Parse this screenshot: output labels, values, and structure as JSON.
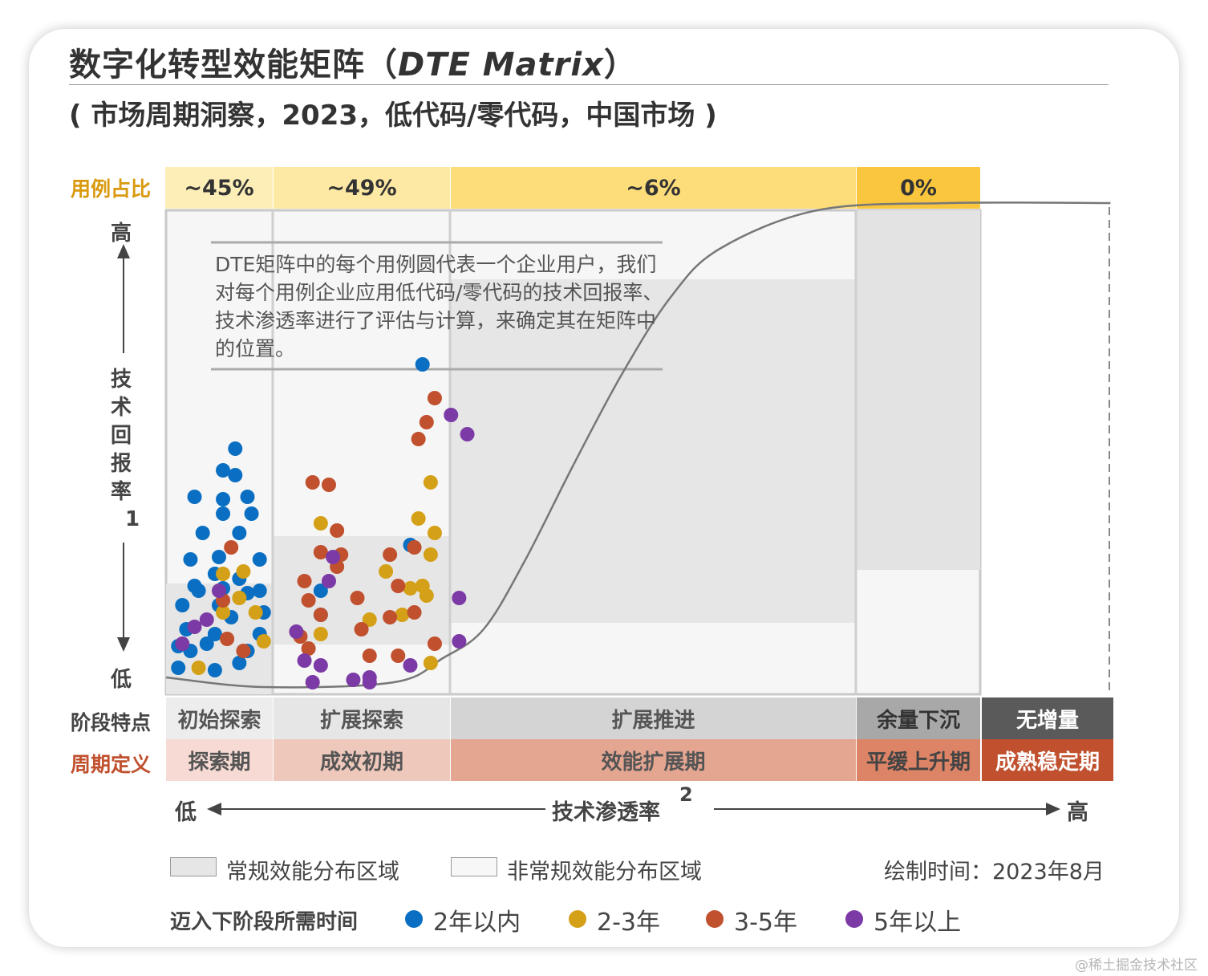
{
  "title": {
    "main": "数字化转型效能矩阵（",
    "italic": "DTE Matrix",
    "close": "）"
  },
  "subtitle": "( 市场周期洞察，2023，低代码/零代码，中国市场 )",
  "row_labels": {
    "share": "用例占比",
    "stage": "阶段特点",
    "cycle": "周期定义"
  },
  "shares": [
    "~45%",
    "~49%",
    "~6%",
    "0%"
  ],
  "stages": [
    "初始探索",
    "扩展探索",
    "扩展推进",
    "余量下沉",
    "无增量"
  ],
  "cycles": [
    "探索期",
    "成效初期",
    "效能扩展期",
    "平缓上升期",
    "成熟稳定期"
  ],
  "y_axis": {
    "high": "高",
    "low": "低",
    "label": [
      "技",
      "术",
      "回",
      "报",
      "率"
    ],
    "footnote": "1"
  },
  "x_axis": {
    "low": "低",
    "high": "高",
    "label": "技术渗透率",
    "footnote": "2"
  },
  "note": "DTE矩阵中的每个用例圆代表一个企业用户，我们对每个用例企业应用低代码/零代码的技术回报率、技术渗透率进行了评估与计算，来确定其在矩阵中的位置。",
  "legend": {
    "regular": "常规效能分布区域",
    "irregular": "非常规效能分布区域",
    "date": "绘制时间：2023年8月",
    "time_title": "迈入下阶段所需时间",
    "time_items": [
      "2年以内",
      "2-3年",
      "3-5年",
      "5年以上"
    ]
  },
  "colors": {
    "blue": "#0a6fc2",
    "gold": "#d4a017",
    "rust": "#c0502e",
    "purple": "#7b3aa5",
    "title": "#333333"
  },
  "watermark": "@稀土掘金技术社区",
  "chart_data": {
    "type": "scatter",
    "title": "数字化转型效能矩阵（DTE Matrix）",
    "xlabel": "技术渗透率",
    "ylabel": "技术回报率",
    "xlim": [
      0,
      100
    ],
    "ylim": [
      0,
      100
    ],
    "categories": [
      "探索期",
      "成效初期",
      "效能扩展期",
      "平缓上升期",
      "成熟稳定期"
    ],
    "category_ranges": [
      [
        0,
        11
      ],
      [
        11,
        35
      ],
      [
        35,
        84
      ],
      [
        84,
        100
      ],
      [
        100,
        116
      ]
    ],
    "curve": [
      [
        0,
        3
      ],
      [
        12,
        1
      ],
      [
        28,
        2
      ],
      [
        34,
        7
      ],
      [
        39,
        13
      ],
      [
        44,
        27
      ],
      [
        50,
        47
      ],
      [
        56,
        66
      ],
      [
        62,
        82
      ],
      [
        68,
        92
      ],
      [
        80,
        100
      ],
      [
        96,
        101.5
      ],
      [
        116,
        101.5
      ]
    ],
    "series": [
      {
        "name": "2年以内",
        "points": [
          [
            1.5,
            5
          ],
          [
            3,
            8.5
          ],
          [
            6,
            12
          ],
          [
            9,
            6
          ],
          [
            11.5,
            12
          ],
          [
            2.5,
            13
          ],
          [
            5,
            10
          ],
          [
            8,
            15.5
          ],
          [
            10,
            8.5
          ],
          [
            12,
            16.5
          ],
          [
            6.5,
            18
          ],
          [
            2,
            18
          ],
          [
            4,
            21
          ],
          [
            7,
            21.5
          ],
          [
            10,
            20.5
          ],
          [
            3.5,
            22
          ],
          [
            6,
            24.5
          ],
          [
            11.5,
            21
          ],
          [
            9,
            23.5
          ],
          [
            3,
            27.5
          ],
          [
            6.5,
            28
          ],
          [
            11.5,
            27.5
          ],
          [
            4.5,
            33
          ],
          [
            9,
            33
          ],
          [
            7,
            37
          ],
          [
            10.5,
            37
          ],
          [
            10,
            40.5
          ],
          [
            7,
            40
          ],
          [
            3.5,
            40.5
          ],
          [
            8.5,
            45
          ],
          [
            7,
            46
          ],
          [
            8.5,
            50.5
          ],
          [
            1.5,
            9.5
          ],
          [
            6,
            4.5
          ],
          [
            19,
            16
          ],
          [
            19,
            21
          ],
          [
            30,
            30.5
          ],
          [
            31.5,
            68
          ]
        ]
      },
      {
        "name": "2-3年",
        "points": [
          [
            4,
            5
          ],
          [
            7,
            16.5
          ],
          [
            11,
            16.5
          ],
          [
            9,
            19.5
          ],
          [
            7,
            24.5
          ],
          [
            9.5,
            25
          ],
          [
            12,
            10.5
          ],
          [
            19,
            12
          ],
          [
            19,
            35
          ],
          [
            25,
            15
          ],
          [
            27,
            25
          ],
          [
            29,
            16
          ],
          [
            30,
            21.5
          ],
          [
            31.5,
            22
          ],
          [
            32,
            20
          ],
          [
            32.5,
            28.5
          ],
          [
            33,
            33
          ],
          [
            31,
            36
          ],
          [
            32.5,
            43.5
          ],
          [
            32.5,
            6
          ]
        ]
      },
      {
        "name": "3-5年",
        "points": [
          [
            7.5,
            11
          ],
          [
            9.5,
            8.5
          ],
          [
            7,
            19
          ],
          [
            8,
            30
          ],
          [
            16.5,
            11.5
          ],
          [
            17.5,
            9
          ],
          [
            19,
            16
          ],
          [
            17.5,
            19
          ],
          [
            17,
            23
          ],
          [
            21,
            26
          ],
          [
            19,
            29
          ],
          [
            21.5,
            28.5
          ],
          [
            21,
            33.5
          ],
          [
            23.5,
            19.5
          ],
          [
            24,
            13
          ],
          [
            25,
            7.5
          ],
          [
            27.5,
            15.5
          ],
          [
            28.5,
            7.5
          ],
          [
            28.5,
            22
          ],
          [
            27.5,
            28.5
          ],
          [
            30.5,
            30
          ],
          [
            33,
            10
          ],
          [
            18,
            43.5
          ],
          [
            20,
            43
          ],
          [
            31,
            52.5
          ],
          [
            32,
            56
          ],
          [
            33,
            61
          ],
          [
            30.5,
            16.5
          ]
        ]
      },
      {
        "name": "5年以上",
        "points": [
          [
            2,
            10
          ],
          [
            3.5,
            13.5
          ],
          [
            5,
            15
          ],
          [
            6.5,
            21
          ],
          [
            16,
            12.5
          ],
          [
            17,
            6.5
          ],
          [
            19,
            5.5
          ],
          [
            20,
            23
          ],
          [
            20.5,
            28
          ],
          [
            23,
            2.5
          ],
          [
            25,
            3
          ],
          [
            25,
            2
          ],
          [
            30,
            5.5
          ],
          [
            36,
            10.5
          ],
          [
            36,
            19.5
          ],
          [
            35,
            57.5
          ],
          [
            37,
            53.5
          ],
          [
            18,
            2
          ]
        ]
      }
    ]
  }
}
